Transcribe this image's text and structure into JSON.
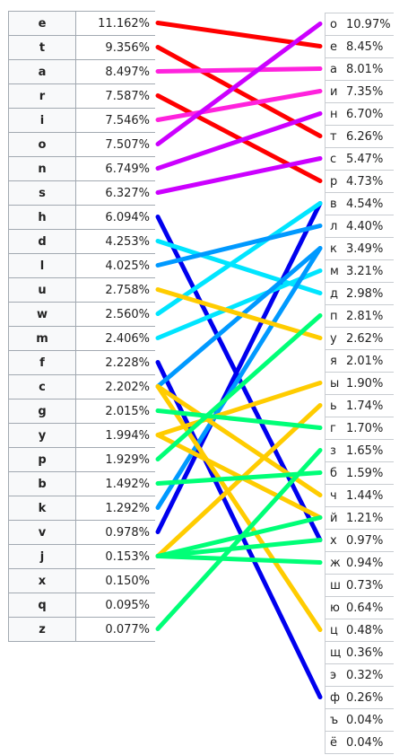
{
  "chart_data": {
    "type": "table",
    "english": [
      {
        "letter": "e",
        "pct": "11.162%"
      },
      {
        "letter": "t",
        "pct": "9.356%"
      },
      {
        "letter": "a",
        "pct": "8.497%"
      },
      {
        "letter": "r",
        "pct": "7.587%"
      },
      {
        "letter": "i",
        "pct": "7.546%"
      },
      {
        "letter": "o",
        "pct": "7.507%"
      },
      {
        "letter": "n",
        "pct": "6.749%"
      },
      {
        "letter": "s",
        "pct": "6.327%"
      },
      {
        "letter": "h",
        "pct": "6.094%"
      },
      {
        "letter": "d",
        "pct": "4.253%"
      },
      {
        "letter": "l",
        "pct": "4.025%"
      },
      {
        "letter": "u",
        "pct": "2.758%"
      },
      {
        "letter": "w",
        "pct": "2.560%"
      },
      {
        "letter": "m",
        "pct": "2.406%"
      },
      {
        "letter": "f",
        "pct": "2.228%"
      },
      {
        "letter": "c",
        "pct": "2.202%"
      },
      {
        "letter": "g",
        "pct": "2.015%"
      },
      {
        "letter": "y",
        "pct": "1.994%"
      },
      {
        "letter": "p",
        "pct": "1.929%"
      },
      {
        "letter": "b",
        "pct": "1.492%"
      },
      {
        "letter": "k",
        "pct": "1.292%"
      },
      {
        "letter": "v",
        "pct": "0.978%"
      },
      {
        "letter": "j",
        "pct": "0.153%"
      },
      {
        "letter": "x",
        "pct": "0.150%"
      },
      {
        "letter": "q",
        "pct": "0.095%"
      },
      {
        "letter": "z",
        "pct": "0.077%"
      }
    ],
    "russian": [
      {
        "letter": "о",
        "pct": "10.97%"
      },
      {
        "letter": "е",
        "pct": "8.45%"
      },
      {
        "letter": "а",
        "pct": "8.01%"
      },
      {
        "letter": "и",
        "pct": "7.35%"
      },
      {
        "letter": "н",
        "pct": "6.70%"
      },
      {
        "letter": "т",
        "pct": "6.26%"
      },
      {
        "letter": "с",
        "pct": "5.47%"
      },
      {
        "letter": "р",
        "pct": "4.73%"
      },
      {
        "letter": "в",
        "pct": "4.54%"
      },
      {
        "letter": "л",
        "pct": "4.40%"
      },
      {
        "letter": "к",
        "pct": "3.49%"
      },
      {
        "letter": "м",
        "pct": "3.21%"
      },
      {
        "letter": "д",
        "pct": "2.98%"
      },
      {
        "letter": "п",
        "pct": "2.81%"
      },
      {
        "letter": "у",
        "pct": "2.62%"
      },
      {
        "letter": "я",
        "pct": "2.01%"
      },
      {
        "letter": "ы",
        "pct": "1.90%"
      },
      {
        "letter": "ь",
        "pct": "1.74%"
      },
      {
        "letter": "г",
        "pct": "1.70%"
      },
      {
        "letter": "з",
        "pct": "1.65%"
      },
      {
        "letter": "б",
        "pct": "1.59%"
      },
      {
        "letter": "ч",
        "pct": "1.44%"
      },
      {
        "letter": "й",
        "pct": "1.21%"
      },
      {
        "letter": "х",
        "pct": "0.97%"
      },
      {
        "letter": "ж",
        "pct": "0.94%"
      },
      {
        "letter": "ш",
        "pct": "0.73%"
      },
      {
        "letter": "ю",
        "pct": "0.64%"
      },
      {
        "letter": "ц",
        "pct": "0.48%"
      },
      {
        "letter": "щ",
        "pct": "0.36%"
      },
      {
        "letter": "э",
        "pct": "0.32%"
      },
      {
        "letter": "ф",
        "pct": "0.26%"
      },
      {
        "letter": "ъ",
        "pct": "0.04%"
      },
      {
        "letter": "ё",
        "pct": "0.04%"
      }
    ],
    "links": [
      {
        "from": "e",
        "to": "е",
        "color": "#ff0000"
      },
      {
        "from": "t",
        "to": "т",
        "color": "#ff0000"
      },
      {
        "from": "r",
        "to": "р",
        "color": "#ff0000"
      },
      {
        "from": "a",
        "to": "а",
        "color": "#ff22dd"
      },
      {
        "from": "i",
        "to": "и",
        "color": "#ff22dd"
      },
      {
        "from": "o",
        "to": "о",
        "color": "#cc00ff"
      },
      {
        "from": "n",
        "to": "н",
        "color": "#cc00ff"
      },
      {
        "from": "s",
        "to": "с",
        "color": "#cc00ff"
      },
      {
        "from": "h",
        "to": "х",
        "color": "#0000ee"
      },
      {
        "from": "v",
        "to": "в",
        "color": "#0000ee"
      },
      {
        "from": "f",
        "to": "ф",
        "color": "#0000ee"
      },
      {
        "from": "d",
        "to": "д",
        "color": "#00e5ff"
      },
      {
        "from": "w",
        "to": "в",
        "color": "#00e5ff"
      },
      {
        "from": "m",
        "to": "м",
        "color": "#00e5ff"
      },
      {
        "from": "l",
        "to": "л",
        "color": "#0099ff"
      },
      {
        "from": "c",
        "to": "к",
        "color": "#0099ff"
      },
      {
        "from": "k",
        "to": "к",
        "color": "#0099ff"
      },
      {
        "from": "u",
        "to": "у",
        "color": "#ffcc00"
      },
      {
        "from": "c",
        "to": "ч",
        "color": "#ffcc00"
      },
      {
        "from": "y",
        "to": "ы",
        "color": "#ffcc00"
      },
      {
        "from": "y",
        "to": "й",
        "color": "#ffcc00"
      },
      {
        "from": "j",
        "to": "ь",
        "color": "#ffcc00"
      },
      {
        "from": "c",
        "to": "ц",
        "color": "#ffcc00"
      },
      {
        "from": "g",
        "to": "г",
        "color": "#00ff77"
      },
      {
        "from": "p",
        "to": "п",
        "color": "#00ff77"
      },
      {
        "from": "b",
        "to": "б",
        "color": "#00ff77"
      },
      {
        "from": "j",
        "to": "й",
        "color": "#00ff77"
      },
      {
        "from": "j",
        "to": "х",
        "color": "#00ff77"
      },
      {
        "from": "j",
        "to": "ж",
        "color": "#00ff77"
      },
      {
        "from": "z",
        "to": "з",
        "color": "#00ff77"
      }
    ]
  }
}
